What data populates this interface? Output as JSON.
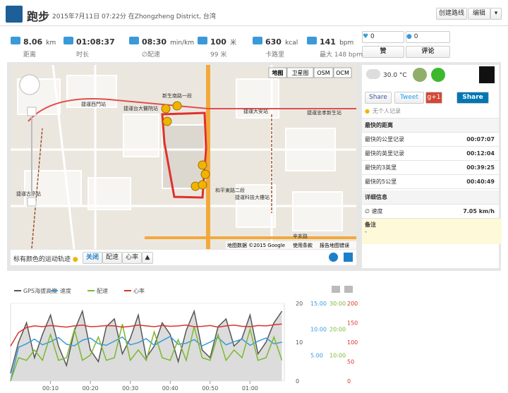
{
  "header": {
    "title": "跑步",
    "subtitle": "2015年7月11日 07:22分 在Zhongzheng District, 台湾",
    "buttons": [
      "创建路线",
      "编辑",
      "▾"
    ]
  },
  "stats": [
    {
      "value": "8.06",
      "unit": "km",
      "label": "距离"
    },
    {
      "value": "01:08:37",
      "label": "时长"
    },
    {
      "value": "08:30",
      "unit": "min/km",
      "label": "∅配速"
    },
    {
      "value": "100",
      "unit": "米",
      "label": "99 米"
    },
    {
      "value": "630",
      "unit": "kcal",
      "label": "卡路里"
    },
    {
      "value": "141",
      "unit": "bpm",
      "label": "最大 148 bpm"
    }
  ],
  "social": {
    "likes": "0",
    "comments": "0",
    "like_button": "赞",
    "comment_button": "评论"
  },
  "weather": "30.0 °C",
  "share": [
    "Share",
    "Tweet",
    "g+1",
    "Share"
  ],
  "records": {
    "personal": "无个人记录",
    "title": "最快的距离",
    "rows": [
      [
        "最快的公里记录",
        "00:07:07"
      ],
      [
        "最快的英里记录",
        "00:12:04"
      ],
      [
        "最快的3英里",
        "00:39:25"
      ],
      [
        "最快的5公里",
        "00:40:49"
      ]
    ]
  },
  "details": {
    "title": "详细信息",
    "rows": [
      [
        "∅ 速度",
        "7.05 km/h"
      ]
    ]
  },
  "notes": {
    "title": "备注",
    "text": "-"
  },
  "map": {
    "buttons": [
      "地图",
      "卫星图",
      "OSM",
      "OCM"
    ],
    "labels": [
      "捷運西門站",
      "捷運台大醫院站",
      "新生南路一段",
      "捷運大安站",
      "捷運科技大樓站",
      "和平東路二段",
      "捷運古亭站",
      "辛亥路",
      "捷運忠孝新生站"
    ],
    "footer": [
      "地图数据 ©2015 Google",
      "使用条款",
      "报告地图错误"
    ],
    "track_label": "标有颜色的运动轨迹",
    "track_buttons": [
      "关闭",
      "配速",
      "心率",
      "▲"
    ]
  },
  "chart": {
    "type": "line",
    "x": [
      0,
      2,
      4,
      6,
      8,
      10,
      12,
      14,
      16,
      18,
      20,
      22,
      24,
      26,
      28,
      30,
      32,
      34,
      36,
      38,
      40,
      42,
      44,
      46,
      48,
      50,
      52,
      54,
      56,
      58,
      60,
      62,
      64,
      66,
      68
    ],
    "xlim": [
      0,
      68.6
    ],
    "xticks": [
      {
        "value": 10,
        "label": "00:10"
      },
      {
        "value": 20,
        "label": "00:20"
      },
      {
        "value": 30,
        "label": "00:30"
      },
      {
        "value": 40,
        "label": "00:40"
      },
      {
        "value": 50,
        "label": "00:50"
      },
      {
        "value": 60,
        "label": "01:00"
      }
    ],
    "ylim": [
      0,
      20
    ],
    "yticks": [
      0,
      10,
      20
    ],
    "y2lim": [
      0,
      15
    ],
    "y2ticks": [
      {
        "value": 5,
        "label": "5.00"
      },
      {
        "value": 10,
        "label": "10.00"
      },
      {
        "value": 15,
        "label": "15.00"
      }
    ],
    "y3lim": [
      0,
      30
    ],
    "y3ticks": [
      {
        "value": 10,
        "label": "10:00"
      },
      {
        "value": 20,
        "label": "20:00"
      },
      {
        "value": 30,
        "label": "30:00"
      }
    ],
    "y4lim": [
      0,
      200
    ],
    "y4ticks": [
      0,
      50,
      100,
      150,
      200
    ],
    "series": [
      {
        "name": "GPS海拔高度",
        "color": "#555555",
        "axis": "y",
        "values": [
          2,
          10,
          15,
          6,
          12,
          17,
          9,
          4,
          13,
          18,
          8,
          5,
          14,
          16,
          7,
          11,
          17,
          6,
          9,
          15,
          12,
          5,
          13,
          18,
          8,
          6,
          14,
          16,
          9,
          11,
          17,
          7,
          10,
          15,
          18
        ]
      },
      {
        "name": "速度",
        "color": "#3a9ad9",
        "axis": "y2",
        "values": [
          0,
          6.5,
          7.2,
          8.1,
          7.0,
          7.6,
          8.4,
          7.1,
          6.8,
          7.9,
          8.3,
          7.2,
          6.9,
          7.7,
          8.5,
          7.0,
          7.4,
          8.2,
          6.9,
          7.8,
          8.6,
          7.1,
          7.3,
          8.0,
          6.8,
          7.5,
          8.4,
          7.0,
          7.6,
          8.1,
          6.9,
          7.7,
          8.3,
          7.2,
          7.5
        ]
      },
      {
        "name": "配速",
        "color": "#7cb82f",
        "axis": "y3",
        "values": [
          0,
          9,
          8,
          12,
          8,
          18,
          8,
          9,
          20,
          8,
          10,
          17,
          8,
          9,
          22,
          8,
          12,
          8,
          19,
          9,
          8,
          16,
          8,
          21,
          9,
          8,
          18,
          8,
          12,
          9,
          20,
          8,
          9,
          17,
          8
        ]
      },
      {
        "name": "心率",
        "color": "#d9342b",
        "axis": "y4",
        "values": [
          90,
          125,
          138,
          142,
          140,
          143,
          141,
          139,
          142,
          144,
          140,
          141,
          143,
          142,
          139,
          141,
          144,
          142,
          140,
          143,
          141,
          142,
          144,
          140,
          141,
          143,
          139,
          142,
          144,
          141,
          140,
          143,
          142,
          145,
          147
        ]
      }
    ]
  }
}
